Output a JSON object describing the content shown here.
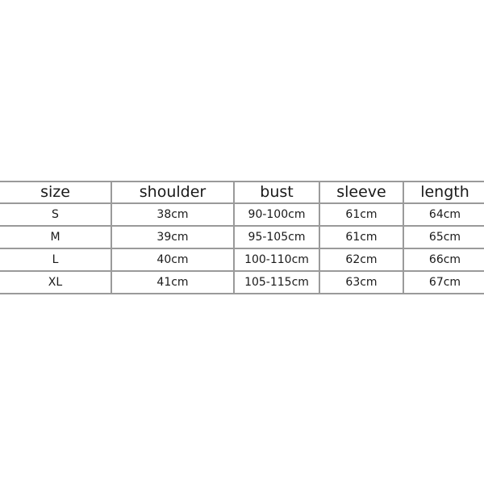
{
  "size_chart": {
    "headers": [
      "size",
      "shoulder",
      "bust",
      "sleeve",
      "length"
    ],
    "rows": [
      [
        "S",
        "38cm",
        "90-100cm",
        "61cm",
        "64cm"
      ],
      [
        "M",
        "39cm",
        "95-105cm",
        "61cm",
        "65cm"
      ],
      [
        "L",
        "40cm",
        "100-110cm",
        "62cm",
        "66cm"
      ],
      [
        "XL",
        "41cm",
        "105-115cm",
        "63cm",
        "67cm"
      ]
    ]
  }
}
